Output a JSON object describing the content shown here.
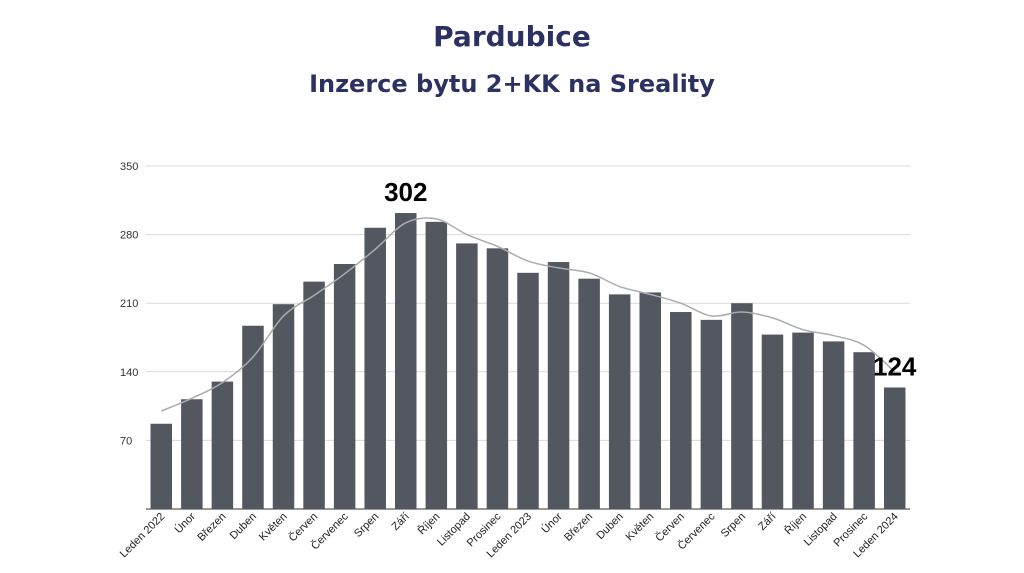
{
  "header": {
    "title": "Pardubice",
    "subtitle": "Inzerce bytu 2+KK na Sreality"
  },
  "chart_data": {
    "type": "bar",
    "title": "Pardubice",
    "subtitle": "Inzerce bytu 2+KK na Sreality",
    "xlabel": "",
    "ylabel": "",
    "ylim": [
      0,
      350
    ],
    "yticks": [
      70,
      140,
      210,
      280,
      350
    ],
    "grid": true,
    "colors": {
      "bar": "#535860",
      "trend": "#a9abaf",
      "grid": "#d9d9d9",
      "title": "#2b3160"
    },
    "categories": [
      "Leden 2022",
      "Únor",
      "Březen",
      "Duben",
      "Květen",
      "Červen",
      "Červenec",
      "Srpen",
      "Září",
      "Říjen",
      "Listopad",
      "Prosinec",
      "Leden 2023",
      "Únor",
      "Březen",
      "Duben",
      "Květen",
      "Červen",
      "Červenec",
      "Srpen",
      "Září",
      "Říjen",
      "Listopad",
      "Prosinec",
      "Leden 2024"
    ],
    "series": [
      {
        "type": "bar",
        "values": [
          87,
          112,
          130,
          187,
          209,
          232,
          250,
          287,
          302,
          293,
          271,
          266,
          241,
          252,
          235,
          219,
          221,
          201,
          193,
          210,
          178,
          180,
          171,
          160,
          124
        ]
      },
      {
        "type": "line",
        "values": [
          100,
          113,
          129,
          155,
          197,
          218,
          240,
          265,
          292,
          296,
          280,
          268,
          253,
          246,
          241,
          227,
          219,
          210,
          197,
          201,
          195,
          183,
          177,
          167,
          140
        ]
      }
    ],
    "annotations": [
      {
        "category_index": 8,
        "value": 302,
        "text": "302"
      },
      {
        "category_index": 24,
        "value": 124,
        "text": "124"
      }
    ]
  }
}
